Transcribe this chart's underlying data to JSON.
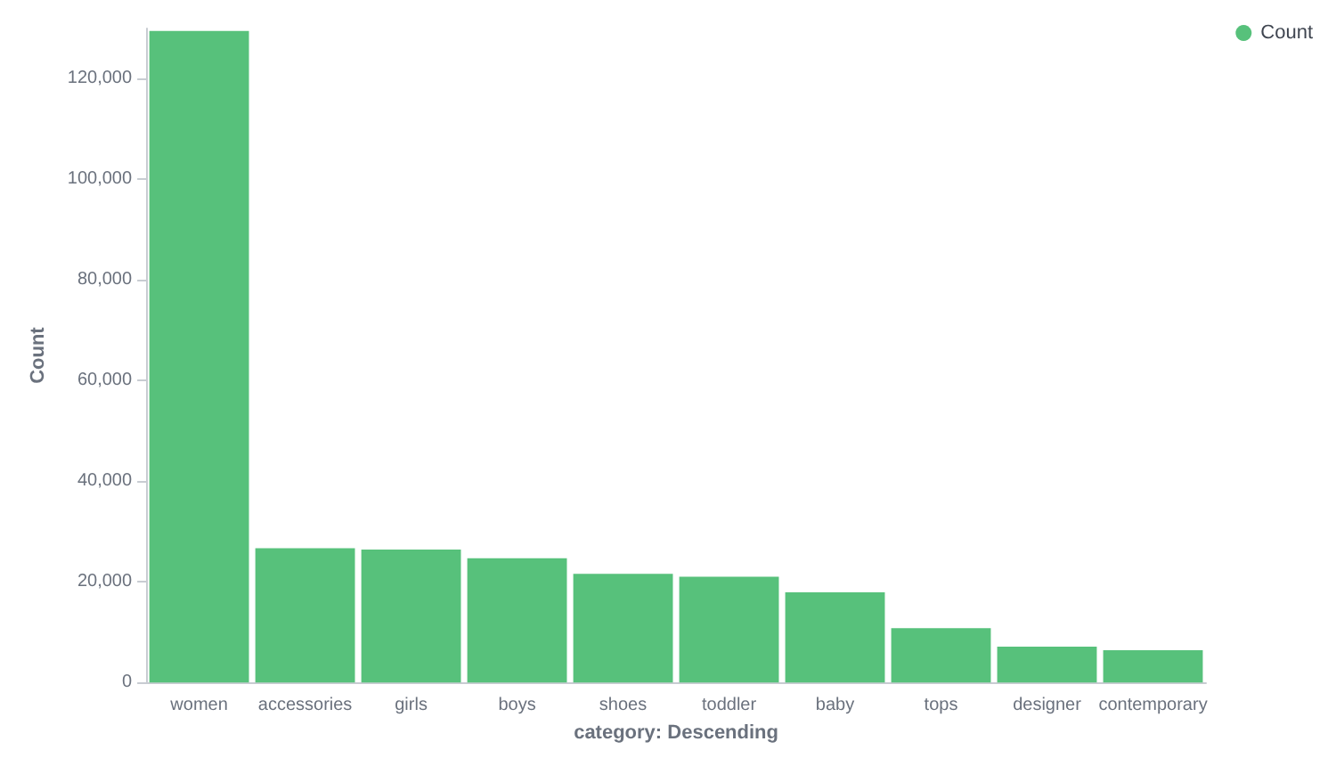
{
  "chart_data": {
    "type": "bar",
    "xlabel": "category: Descending",
    "ylabel": "Count",
    "categories": [
      "women",
      "accessories",
      "girls",
      "boys",
      "shoes",
      "toddler",
      "baby",
      "tops",
      "designer",
      "contemporary"
    ],
    "series": [
      {
        "name": "Count",
        "color": "#57c17b",
        "values": [
          129500,
          26700,
          26400,
          24700,
          21600,
          21000,
          17900,
          10800,
          7100,
          6400
        ]
      }
    ],
    "ylim": [
      0,
      130000
    ],
    "yticks": [
      0,
      {
        "value": 20000,
        "label": "20,000"
      },
      {
        "value": 40000,
        "label": "40,000"
      },
      {
        "value": 60000,
        "label": "60,000"
      },
      {
        "value": 80000,
        "label": "80,000"
      },
      {
        "value": 100000,
        "label": "100,000"
      },
      {
        "value": 120000,
        "label": "120,000"
      }
    ],
    "grid": false,
    "legend": "top right"
  }
}
